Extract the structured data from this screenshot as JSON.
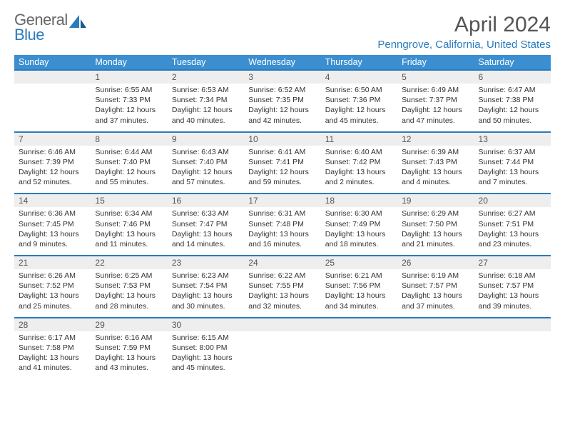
{
  "logo": {
    "general": "General",
    "blue": "Blue"
  },
  "title": "April 2024",
  "location": "Penngrove, California, United States",
  "weekdays": [
    "Sunday",
    "Monday",
    "Tuesday",
    "Wednesday",
    "Thursday",
    "Friday",
    "Saturday"
  ],
  "colors": {
    "header_bg": "#3b8fd0",
    "accent": "#2b7bbc",
    "daynum_bg": "#eeeeee",
    "row_border": "#2b7bbc",
    "text": "#333333",
    "title_text": "#555555"
  },
  "weeks": [
    {
      "nums": [
        "",
        "1",
        "2",
        "3",
        "4",
        "5",
        "6"
      ],
      "cells": [
        "",
        "Sunrise: 6:55 AM\nSunset: 7:33 PM\nDaylight: 12 hours and 37 minutes.",
        "Sunrise: 6:53 AM\nSunset: 7:34 PM\nDaylight: 12 hours and 40 minutes.",
        "Sunrise: 6:52 AM\nSunset: 7:35 PM\nDaylight: 12 hours and 42 minutes.",
        "Sunrise: 6:50 AM\nSunset: 7:36 PM\nDaylight: 12 hours and 45 minutes.",
        "Sunrise: 6:49 AM\nSunset: 7:37 PM\nDaylight: 12 hours and 47 minutes.",
        "Sunrise: 6:47 AM\nSunset: 7:38 PM\nDaylight: 12 hours and 50 minutes."
      ]
    },
    {
      "nums": [
        "7",
        "8",
        "9",
        "10",
        "11",
        "12",
        "13"
      ],
      "cells": [
        "Sunrise: 6:46 AM\nSunset: 7:39 PM\nDaylight: 12 hours and 52 minutes.",
        "Sunrise: 6:44 AM\nSunset: 7:40 PM\nDaylight: 12 hours and 55 minutes.",
        "Sunrise: 6:43 AM\nSunset: 7:40 PM\nDaylight: 12 hours and 57 minutes.",
        "Sunrise: 6:41 AM\nSunset: 7:41 PM\nDaylight: 12 hours and 59 minutes.",
        "Sunrise: 6:40 AM\nSunset: 7:42 PM\nDaylight: 13 hours and 2 minutes.",
        "Sunrise: 6:39 AM\nSunset: 7:43 PM\nDaylight: 13 hours and 4 minutes.",
        "Sunrise: 6:37 AM\nSunset: 7:44 PM\nDaylight: 13 hours and 7 minutes."
      ]
    },
    {
      "nums": [
        "14",
        "15",
        "16",
        "17",
        "18",
        "19",
        "20"
      ],
      "cells": [
        "Sunrise: 6:36 AM\nSunset: 7:45 PM\nDaylight: 13 hours and 9 minutes.",
        "Sunrise: 6:34 AM\nSunset: 7:46 PM\nDaylight: 13 hours and 11 minutes.",
        "Sunrise: 6:33 AM\nSunset: 7:47 PM\nDaylight: 13 hours and 14 minutes.",
        "Sunrise: 6:31 AM\nSunset: 7:48 PM\nDaylight: 13 hours and 16 minutes.",
        "Sunrise: 6:30 AM\nSunset: 7:49 PM\nDaylight: 13 hours and 18 minutes.",
        "Sunrise: 6:29 AM\nSunset: 7:50 PM\nDaylight: 13 hours and 21 minutes.",
        "Sunrise: 6:27 AM\nSunset: 7:51 PM\nDaylight: 13 hours and 23 minutes."
      ]
    },
    {
      "nums": [
        "21",
        "22",
        "23",
        "24",
        "25",
        "26",
        "27"
      ],
      "cells": [
        "Sunrise: 6:26 AM\nSunset: 7:52 PM\nDaylight: 13 hours and 25 minutes.",
        "Sunrise: 6:25 AM\nSunset: 7:53 PM\nDaylight: 13 hours and 28 minutes.",
        "Sunrise: 6:23 AM\nSunset: 7:54 PM\nDaylight: 13 hours and 30 minutes.",
        "Sunrise: 6:22 AM\nSunset: 7:55 PM\nDaylight: 13 hours and 32 minutes.",
        "Sunrise: 6:21 AM\nSunset: 7:56 PM\nDaylight: 13 hours and 34 minutes.",
        "Sunrise: 6:19 AM\nSunset: 7:57 PM\nDaylight: 13 hours and 37 minutes.",
        "Sunrise: 6:18 AM\nSunset: 7:57 PM\nDaylight: 13 hours and 39 minutes."
      ]
    },
    {
      "nums": [
        "28",
        "29",
        "30",
        "",
        "",
        "",
        ""
      ],
      "cells": [
        "Sunrise: 6:17 AM\nSunset: 7:58 PM\nDaylight: 13 hours and 41 minutes.",
        "Sunrise: 6:16 AM\nSunset: 7:59 PM\nDaylight: 13 hours and 43 minutes.",
        "Sunrise: 6:15 AM\nSunset: 8:00 PM\nDaylight: 13 hours and 45 minutes.",
        "",
        "",
        "",
        ""
      ]
    }
  ]
}
